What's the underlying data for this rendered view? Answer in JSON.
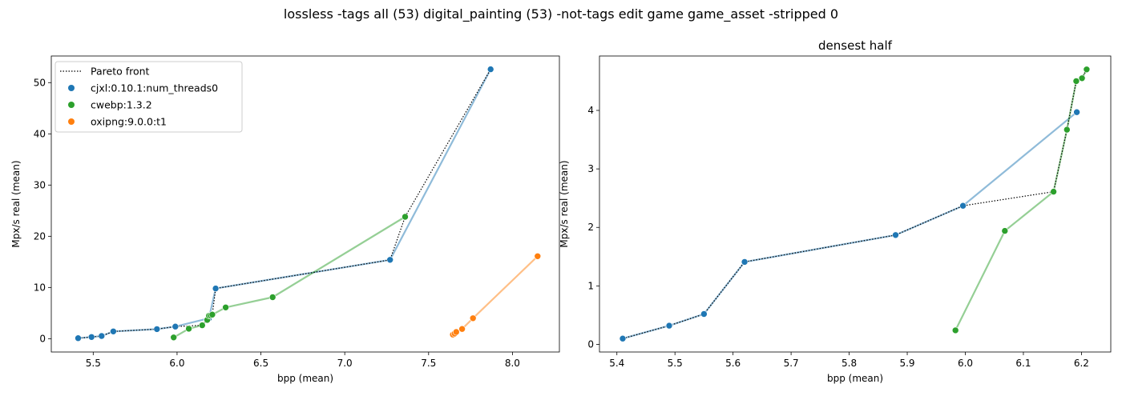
{
  "suptitle": "lossless -tags all (53) digital_painting (53) -not-tags edit game game_asset -stripped 0",
  "colors": {
    "cjxl": "#1f77b4",
    "cwebp": "#2ca02c",
    "oxipng": "#ff7f0e",
    "pareto": "#000000"
  },
  "chart_data": [
    {
      "type": "scatter",
      "title": "",
      "xlabel": "bpp (mean)",
      "ylabel": "Mpx/s real (mean)",
      "xlim": [
        5.25,
        8.28
      ],
      "ylim": [
        -2.6,
        55.2
      ],
      "xticks": [
        5.5,
        6.0,
        6.5,
        7.0,
        7.5,
        8.0
      ],
      "xtick_labels": [
        "5.5",
        "6.0",
        "6.5",
        "7.0",
        "7.5",
        "8.0"
      ],
      "yticks": [
        0,
        10,
        20,
        30,
        40,
        50
      ],
      "ytick_labels": [
        "0",
        "10",
        "20",
        "30",
        "40",
        "50"
      ],
      "legend": {
        "placement": "top-left",
        "entries": [
          {
            "label": "Pareto front",
            "kind": "line"
          },
          {
            "label": "cjxl:0.10.1:num_threads0",
            "kind": "marker",
            "color_key": "cjxl"
          },
          {
            "label": "cwebp:1.3.2",
            "kind": "marker",
            "color_key": "cwebp"
          },
          {
            "label": "oxipng:9.0.0:t1",
            "kind": "marker",
            "color_key": "oxipng"
          }
        ]
      },
      "series": [
        {
          "name": "cjxl:0.10.1:num_threads0",
          "color_key": "cjxl",
          "points": [
            [
              5.41,
              0.1
            ],
            [
              5.49,
              0.32
            ],
            [
              5.55,
              0.52
            ],
            [
              5.62,
              1.41
            ],
            [
              5.88,
              1.87
            ],
            [
              5.99,
              2.37
            ],
            [
              6.19,
              3.97
            ],
            [
              6.23,
              9.8
            ],
            [
              7.27,
              15.4
            ],
            [
              7.87,
              52.6
            ]
          ]
        },
        {
          "name": "cwebp:1.3.2",
          "color_key": "cwebp",
          "points": [
            [
              5.98,
              0.24
            ],
            [
              6.07,
              1.94
            ],
            [
              6.15,
              2.61
            ],
            [
              6.18,
              3.67
            ],
            [
              6.19,
              4.5
            ],
            [
              6.2,
              4.55
            ],
            [
              6.21,
              4.7
            ],
            [
              6.29,
              6.1
            ],
            [
              6.57,
              8.1
            ],
            [
              7.36,
              23.8
            ]
          ]
        },
        {
          "name": "oxipng:9.0.0:t1",
          "color_key": "oxipng",
          "points": [
            [
              7.645,
              0.8
            ],
            [
              7.655,
              1.0
            ],
            [
              7.665,
              1.3
            ],
            [
              7.7,
              1.9
            ],
            [
              7.765,
              4.0
            ],
            [
              8.15,
              16.1
            ]
          ]
        }
      ],
      "pareto": [
        [
          5.41,
          0.1
        ],
        [
          5.49,
          0.32
        ],
        [
          5.55,
          0.52
        ],
        [
          5.62,
          1.41
        ],
        [
          5.88,
          1.87
        ],
        [
          5.99,
          2.37
        ],
        [
          6.15,
          2.61
        ],
        [
          6.18,
          3.67
        ],
        [
          6.19,
          4.5
        ],
        [
          6.2,
          4.55
        ],
        [
          6.21,
          4.7
        ],
        [
          6.23,
          9.8
        ],
        [
          7.27,
          15.4
        ],
        [
          7.36,
          23.8
        ],
        [
          7.87,
          52.6
        ]
      ]
    },
    {
      "type": "scatter",
      "title": "densest half",
      "xlabel": "bpp (mean)",
      "ylabel": "Mpx/s real (mean)",
      "xlim": [
        5.37,
        6.2505
      ],
      "ylim": [
        -0.13,
        4.93
      ],
      "xticks": [
        5.4,
        5.5,
        5.6,
        5.7,
        5.8,
        5.9,
        6.0,
        6.1,
        6.2
      ],
      "xtick_labels": [
        "5.4",
        "5.5",
        "5.6",
        "5.7",
        "5.8",
        "5.9",
        "6.0",
        "6.1",
        "6.2"
      ],
      "yticks": [
        0,
        1,
        2,
        3,
        4
      ],
      "ytick_labels": [
        "0",
        "1",
        "2",
        "3",
        "4"
      ],
      "legend": null,
      "series": [
        {
          "name": "cjxl:0.10.1:num_threads0",
          "color_key": "cjxl",
          "points": [
            [
              5.41,
              0.1
            ],
            [
              5.49,
              0.32
            ],
            [
              5.55,
              0.52
            ],
            [
              5.62,
              1.41
            ],
            [
              5.88,
              1.87
            ],
            [
              5.996,
              2.37
            ],
            [
              6.192,
              3.97
            ]
          ]
        },
        {
          "name": "cwebp:1.3.2",
          "color_key": "cwebp",
          "points": [
            [
              5.983,
              0.24
            ],
            [
              6.068,
              1.94
            ],
            [
              6.152,
              2.61
            ],
            [
              6.175,
              3.67
            ],
            [
              6.191,
              4.5
            ],
            [
              6.201,
              4.55
            ],
            [
              6.209,
              4.7
            ]
          ]
        }
      ],
      "pareto": [
        [
          5.41,
          0.1
        ],
        [
          5.49,
          0.32
        ],
        [
          5.55,
          0.52
        ],
        [
          5.62,
          1.41
        ],
        [
          5.88,
          1.87
        ],
        [
          5.996,
          2.37
        ],
        [
          6.152,
          2.61
        ],
        [
          6.175,
          3.67
        ],
        [
          6.191,
          4.5
        ],
        [
          6.201,
          4.55
        ],
        [
          6.209,
          4.7
        ]
      ]
    }
  ]
}
